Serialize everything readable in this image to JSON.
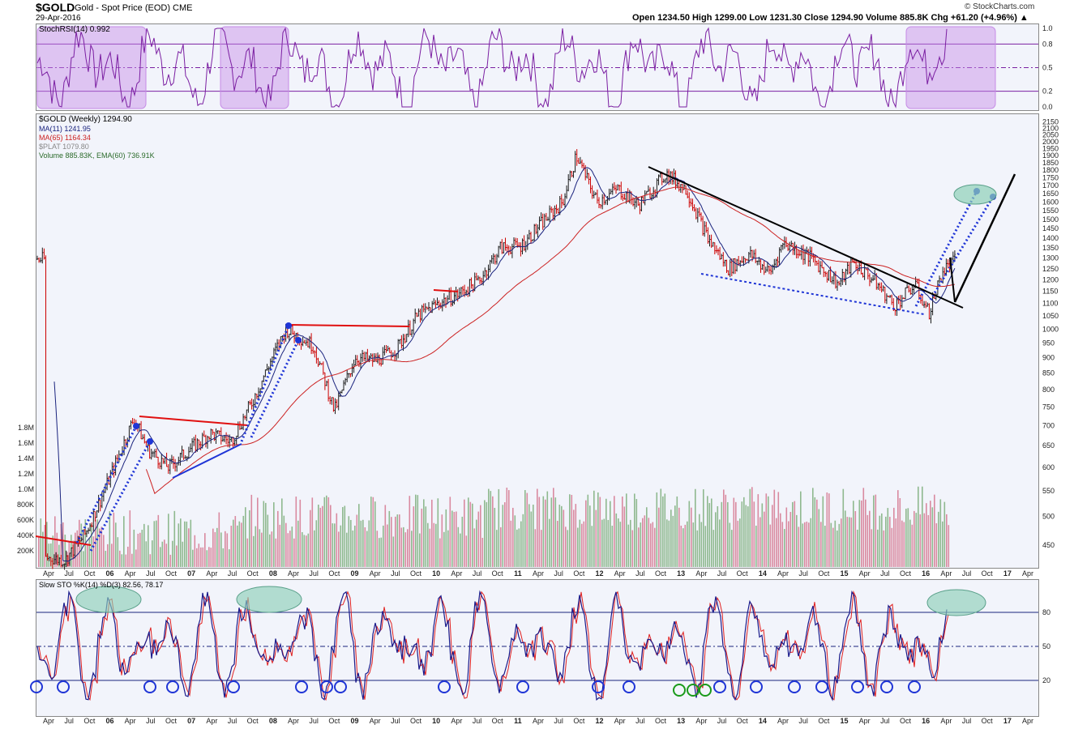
{
  "header": {
    "symbol": "$GOLD",
    "name": "Gold - Spot Price (EOD) CME",
    "date": "29-Apr-2016",
    "brand": "© StockCharts.com",
    "ohlc": "Open 1234.50  High 1299.00  Low 1231.30  Close 1294.90  Volume 885.8K  Chg +61.20 (+4.96%) ▲"
  },
  "legends": {
    "stochrsi": "StochRSI(14) 0.992",
    "price": "$GOLD (Weekly) 1294.90",
    "ma11": "MA(11) 1241.95",
    "ma65": "MA(65) 1164.34",
    "plat": "$PLAT 1079.80",
    "volume": "Volume 885.83K, EMA(60) 736.91K",
    "slowsto": "Slow STO %K(14) %D(3) 82.56, 78.17"
  },
  "colors": {
    "price_up": "#1a1a1a",
    "price_down": "#cc0000",
    "ma11": "#1a237e",
    "ma65": "#cc2222",
    "rsi": "#7b1fa2",
    "rsi_fill": "#c58ae6",
    "trend_blue": "#1f35d6",
    "trend_red": "#e01010",
    "sto_k": "#1a1a8a",
    "sto_d": "#e02020",
    "circle_blue": "#1f35d6",
    "circle_green": "#1a9a1a",
    "ellipse_fill": "#8ed0b8"
  },
  "chart_data": [
    {
      "type": "line",
      "panel": "StochRSI",
      "title": "StochRSI(14) 0.992",
      "ylim": [
        0,
        1
      ],
      "yticks": [
        "1.0",
        "0.8",
        "0.5",
        "0.2",
        "0.0"
      ],
      "reference_levels": [
        0.8,
        0.5,
        0.2
      ],
      "last": 0.992
    },
    {
      "type": "line",
      "panel": "Price",
      "title": "$GOLD (Weekly) 1294.90",
      "scale": "log",
      "ylim": [
        420,
        2200
      ],
      "yticks": [
        "2200",
        "2150",
        "2100",
        "2050",
        "2000",
        "1950",
        "1900",
        "1850",
        "1800",
        "1750",
        "1700",
        "1650",
        "1600",
        "1550",
        "1500",
        "1450",
        "1400",
        "1350",
        "1300",
        "1250",
        "1200",
        "1150",
        "1100",
        "1050",
        "1000",
        "950",
        "900",
        "850",
        "800",
        "750",
        "700",
        "650",
        "600",
        "550",
        "500",
        "450"
      ],
      "volume_ticks": [
        "1.8M",
        "1.6M",
        "1.4M",
        "1.2M",
        "1.0M",
        "800K",
        "600K",
        "400K",
        "200K"
      ],
      "xticks": [
        "Apr",
        "Jul",
        "Oct",
        "06",
        "Apr",
        "Jul",
        "Oct",
        "07",
        "Apr",
        "Jul",
        "Oct",
        "08",
        "Apr",
        "Jul",
        "Oct",
        "09",
        "Apr",
        "Jul",
        "Oct",
        "10",
        "Apr",
        "Jul",
        "Oct",
        "11",
        "Apr",
        "Jul",
        "Oct",
        "12",
        "Apr",
        "Jul",
        "Oct",
        "13",
        "Apr",
        "Jul",
        "Oct",
        "14",
        "Apr",
        "Jul",
        "Oct",
        "15",
        "Apr",
        "Jul",
        "Oct",
        "16",
        "Apr",
        "Jul",
        "Oct",
        "17",
        "Apr"
      ],
      "series": [
        {
          "name": "$GOLD (Weekly)",
          "x": [
            "2005-04",
            "2005-07",
            "2005-10",
            "2006-01",
            "2006-05",
            "2006-07",
            "2006-10",
            "2007-01",
            "2007-04",
            "2007-07",
            "2007-10",
            "2008-01",
            "2008-03",
            "2008-07",
            "2008-10",
            "2009-01",
            "2009-04",
            "2009-07",
            "2009-10",
            "2010-01",
            "2010-04",
            "2010-07",
            "2010-10",
            "2011-01",
            "2011-04",
            "2011-07",
            "2011-09",
            "2011-12",
            "2012-03",
            "2012-06",
            "2012-10",
            "2013-01",
            "2013-04",
            "2013-07",
            "2013-10",
            "2014-01",
            "2014-03",
            "2014-07",
            "2014-11",
            "2015-01",
            "2015-04",
            "2015-07",
            "2015-10",
            "2015-12",
            "2016-02",
            "2016-04"
          ],
          "y": [
            430,
            425,
            470,
            560,
            720,
            640,
            600,
            640,
            680,
            660,
            760,
            900,
            1000,
            940,
            740,
            900,
            890,
            930,
            1050,
            1100,
            1140,
            1200,
            1350,
            1360,
            1480,
            1600,
            1900,
            1600,
            1680,
            1580,
            1780,
            1670,
            1400,
            1250,
            1320,
            1230,
            1380,
            1300,
            1180,
            1280,
            1200,
            1090,
            1180,
            1060,
            1240,
            1295
          ]
        },
        {
          "name": "MA(11)",
          "y_last": 1241.95
        },
        {
          "name": "MA(65)",
          "y_last": 1164.34
        },
        {
          "name": "$PLAT",
          "y_last": 1079.8
        },
        {
          "name": "Volume",
          "y_last": 885830
        },
        {
          "name": "EMA(60)",
          "y_last": 736910
        }
      ]
    },
    {
      "type": "line",
      "panel": "Slow STO",
      "title": "Slow STO %K(14) %D(3) 82.56, 78.17",
      "ylim": [
        0,
        100
      ],
      "yticks": [
        "80",
        "50",
        "20"
      ],
      "series": [
        {
          "name": "%K(14)",
          "y_last": 82.56
        },
        {
          "name": "%D(3)",
          "y_last": 78.17
        }
      ]
    }
  ]
}
